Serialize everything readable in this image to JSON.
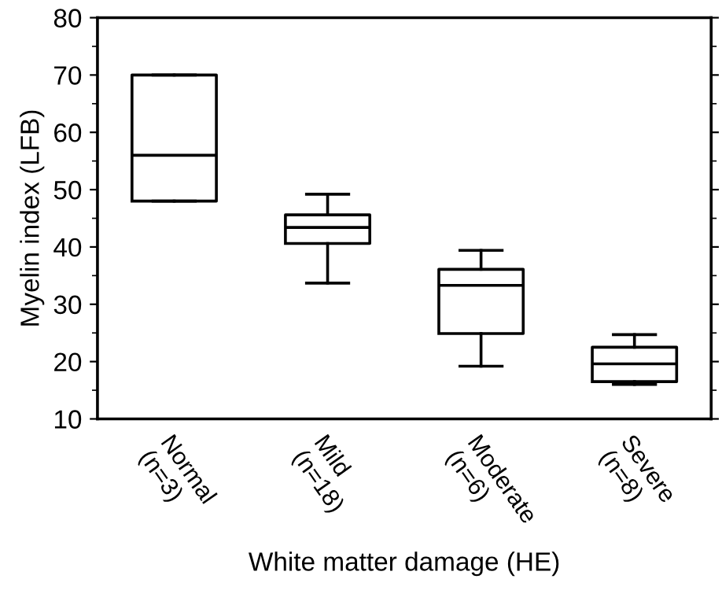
{
  "chart_data": {
    "type": "box",
    "xlabel": "White matter damage (HE)",
    "ylabel": "Myelin index (LFB)",
    "categories": [
      "Normal\n(n=3)",
      "Mild\n(n=18)",
      "Moderate\n(n=6)",
      "Severe\n(n=8)"
    ],
    "boxes": [
      {
        "low": 48,
        "q1": 48,
        "median": 56,
        "q3": 70,
        "high": 70
      },
      {
        "low": 33.7,
        "q1": 40.6,
        "median": 43.4,
        "q3": 45.6,
        "high": 49.2
      },
      {
        "low": 19.2,
        "q1": 24.9,
        "median": 33.3,
        "q3": 36.1,
        "high": 39.4
      },
      {
        "low": 16,
        "q1": 16.5,
        "median": 19.6,
        "q3": 22.5,
        "high": 24.7
      }
    ],
    "ylim": [
      10,
      80
    ],
    "yticks": [
      10,
      20,
      30,
      40,
      50,
      60,
      70,
      80
    ],
    "grid": false
  }
}
